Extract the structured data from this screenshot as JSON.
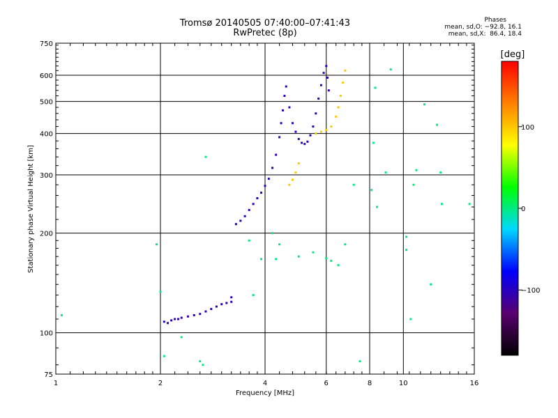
{
  "chart_data": {
    "type": "scatter",
    "title": "Tromsø 20140505 07:40:00–07:41:43",
    "subtitle": "RwPretec (8p)",
    "xlabel": "Frequency [MHz]",
    "ylabel": "Stationary phase Virtual Height [km]",
    "xscale": "log2",
    "yscale": "log",
    "xlim": [
      1,
      16
    ],
    "ylim": [
      75,
      750
    ],
    "x_ticks": [
      1,
      2,
      4,
      6,
      8,
      10,
      16
    ],
    "y_ticks": [
      75,
      100,
      200,
      300,
      400,
      500,
      600,
      750
    ],
    "legend": {
      "title": "Phases",
      "lines": [
        "mean, sd,O: −92.8, 16.1",
        "mean, sd,X:  86.4, 18.4"
      ],
      "placement": "top-right"
    },
    "colorbar": {
      "label": "[deg]",
      "range": [
        -180,
        180
      ],
      "ticks": [
        -100,
        0,
        100
      ],
      "tick_labels": [
        "−100",
        "0",
        "100"
      ],
      "colors": [
        "#000000",
        "#5a0070",
        "#0000ff",
        "#00d8ff",
        "#00ff00",
        "#ffff00",
        "#ff8000",
        "#ff0000"
      ]
    },
    "series": [
      {
        "name": "",
        "phase": -100,
        "points": [
          [
            2.05,
            108
          ],
          [
            2.1,
            107
          ],
          [
            2.15,
            109
          ],
          [
            2.2,
            110
          ],
          [
            2.25,
            110
          ],
          [
            2.3,
            111
          ],
          [
            2.4,
            112
          ],
          [
            2.5,
            113
          ],
          [
            2.6,
            114
          ],
          [
            2.7,
            116
          ],
          [
            2.8,
            118
          ],
          [
            2.9,
            120
          ],
          [
            3.0,
            122
          ],
          [
            3.1,
            123
          ],
          [
            3.2,
            124
          ],
          [
            3.2,
            128
          ],
          [
            3.3,
            213
          ],
          [
            3.4,
            218
          ],
          [
            3.5,
            225
          ],
          [
            3.6,
            235
          ],
          [
            3.7,
            245
          ],
          [
            3.8,
            255
          ],
          [
            3.9,
            265
          ],
          [
            4.0,
            278
          ],
          [
            4.1,
            292
          ],
          [
            4.2,
            315
          ],
          [
            4.3,
            345
          ],
          [
            4.4,
            390
          ],
          [
            4.45,
            430
          ],
          [
            4.5,
            470
          ],
          [
            4.55,
            520
          ],
          [
            4.6,
            555
          ],
          [
            4.7,
            480
          ],
          [
            4.8,
            430
          ],
          [
            4.9,
            405
          ],
          [
            5.0,
            385
          ],
          [
            5.1,
            375
          ],
          [
            5.2,
            372
          ],
          [
            5.3,
            378
          ],
          [
            5.4,
            395
          ],
          [
            5.5,
            420
          ],
          [
            5.6,
            460
          ],
          [
            5.7,
            510
          ],
          [
            5.8,
            560
          ],
          [
            5.9,
            610
          ],
          [
            6.0,
            640
          ],
          [
            6.05,
            590
          ],
          [
            6.1,
            540
          ]
        ]
      },
      {
        "name": "",
        "phase": 100,
        "points": [
          [
            4.7,
            280
          ],
          [
            4.8,
            290
          ],
          [
            4.9,
            305
          ],
          [
            5.0,
            325
          ],
          [
            5.6,
            400
          ],
          [
            5.8,
            405
          ],
          [
            6.0,
            410
          ],
          [
            6.2,
            420
          ],
          [
            6.4,
            450
          ],
          [
            6.5,
            480
          ],
          [
            6.6,
            520
          ],
          [
            6.7,
            570
          ],
          [
            6.8,
            620
          ]
        ]
      },
      {
        "name": "",
        "phase": 0,
        "points": [
          [
            1.04,
            113
          ],
          [
            1.95,
            185
          ],
          [
            2.0,
            133
          ],
          [
            2.05,
            85
          ],
          [
            2.3,
            97
          ],
          [
            2.6,
            82
          ],
          [
            2.65,
            80
          ],
          [
            2.7,
            340
          ],
          [
            3.6,
            190
          ],
          [
            3.7,
            130
          ],
          [
            3.9,
            167
          ],
          [
            4.2,
            200
          ],
          [
            4.3,
            167
          ],
          [
            4.4,
            185
          ],
          [
            5.0,
            170
          ],
          [
            5.5,
            175
          ],
          [
            6.0,
            168
          ],
          [
            6.2,
            165
          ],
          [
            6.5,
            160
          ],
          [
            6.8,
            185
          ],
          [
            7.2,
            280
          ],
          [
            7.5,
            82
          ],
          [
            8.1,
            270
          ],
          [
            8.2,
            375
          ],
          [
            8.3,
            550
          ],
          [
            8.4,
            240
          ],
          [
            8.9,
            305
          ],
          [
            9.2,
            625
          ],
          [
            10.2,
            195
          ],
          [
            10.5,
            110
          ],
          [
            10.7,
            280
          ],
          [
            10.9,
            310
          ],
          [
            11.5,
            490
          ],
          [
            12.0,
            140
          ],
          [
            12.5,
            425
          ],
          [
            12.8,
            305
          ],
          [
            12.9,
            245
          ],
          [
            15.5,
            245
          ],
          [
            10.2,
            178
          ]
        ]
      }
    ]
  }
}
